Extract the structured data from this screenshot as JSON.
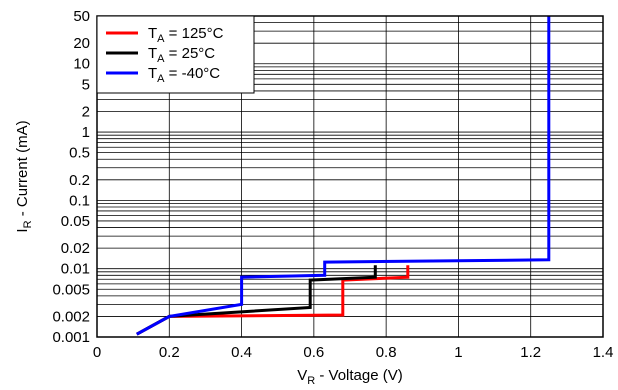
{
  "chart_data": {
    "type": "line",
    "xlabel": {
      "main": "V",
      "sub": "R",
      "rest": " - Voltage (V)"
    },
    "ylabel": {
      "main": "I",
      "sub": "R",
      "rest": " - Current (mA)"
    },
    "xlim": [
      0,
      1.4
    ],
    "ylim": [
      0.001,
      50
    ],
    "yscale": "log",
    "grid": true,
    "legend_position": "top-left",
    "x_ticks": [
      {
        "value": 0,
        "label": "0"
      },
      {
        "value": 0.2,
        "label": "0.2"
      },
      {
        "value": 0.4,
        "label": "0.4"
      },
      {
        "value": 0.6,
        "label": "0.6"
      },
      {
        "value": 0.8,
        "label": "0.8"
      },
      {
        "value": 1.0,
        "label": "1"
      },
      {
        "value": 1.2,
        "label": "1.2"
      },
      {
        "value": 1.4,
        "label": "1.4"
      }
    ],
    "y_ticks": [
      {
        "value": 0.001,
        "label": "0.001"
      },
      {
        "value": 0.002,
        "label": "0.002"
      },
      {
        "value": 0.005,
        "label": "0.005"
      },
      {
        "value": 0.01,
        "label": "0.01"
      },
      {
        "value": 0.02,
        "label": "0.02"
      },
      {
        "value": 0.05,
        "label": "0.05"
      },
      {
        "value": 0.1,
        "label": "0.1"
      },
      {
        "value": 0.2,
        "label": "0.2"
      },
      {
        "value": 0.5,
        "label": "0.5"
      },
      {
        "value": 1,
        "label": "1"
      },
      {
        "value": 2,
        "label": "2"
      },
      {
        "value": 5,
        "label": "5"
      },
      {
        "value": 10,
        "label": "10"
      },
      {
        "value": 20,
        "label": "20"
      },
      {
        "value": 50,
        "label": "50"
      }
    ],
    "series": [
      {
        "name": {
          "main": "T",
          "sub": "A",
          "rest": " = 125°C"
        },
        "color": "#ff0000",
        "x": [
          0.11,
          0.2,
          0.68,
          0.68,
          0.86,
          0.86
        ],
        "y": [
          0.0011,
          0.002,
          0.0021,
          0.0068,
          0.0075,
          0.0112
        ]
      },
      {
        "name": {
          "main": "T",
          "sub": "A",
          "rest": " = 25°C"
        },
        "color": "#000000",
        "x": [
          0.11,
          0.2,
          0.59,
          0.59,
          0.77,
          0.77
        ],
        "y": [
          0.0011,
          0.002,
          0.0027,
          0.0068,
          0.0075,
          0.0112
        ]
      },
      {
        "name": {
          "main": "T",
          "sub": "A",
          "rest": " = -40°C"
        },
        "color": "#0000ff",
        "x": [
          0.11,
          0.2,
          0.4,
          0.4,
          0.63,
          0.63,
          1.25,
          1.25
        ],
        "y": [
          0.0011,
          0.002,
          0.003,
          0.0075,
          0.008,
          0.0125,
          0.0135,
          50
        ]
      }
    ]
  }
}
